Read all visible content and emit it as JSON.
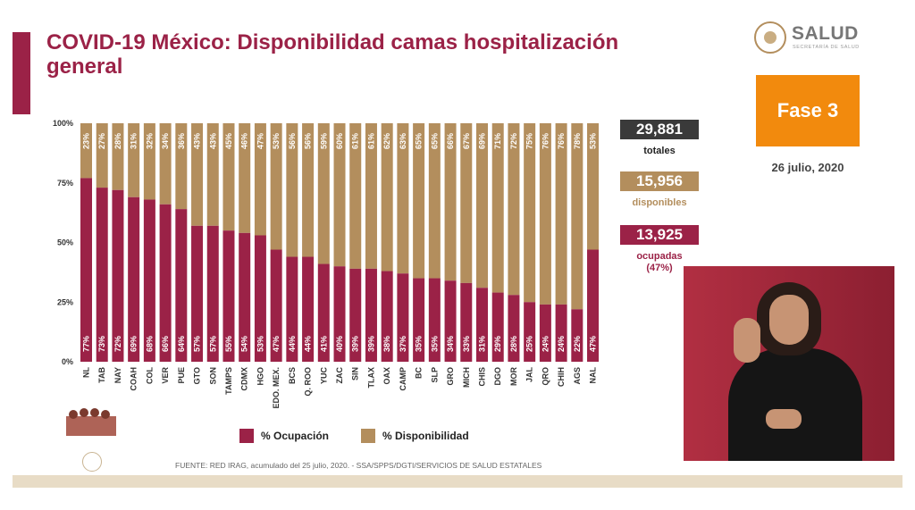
{
  "header": {
    "title": "COVID-19 México: Disponibilidad camas hospitalización general",
    "logo_text": "SALUD",
    "logo_subtext": "SECRETARÍA DE SALUD"
  },
  "phase": {
    "label": "Fase 3",
    "date": "26 julio, 2020"
  },
  "stats": {
    "totales_value": "29,881",
    "totales_label": "totales",
    "disponibles_value": "15,956",
    "disponibles_label": "disponibles",
    "ocupadas_value": "13,925",
    "ocupadas_label": "ocupadas",
    "ocupadas_pct": "(47%)"
  },
  "colors": {
    "ocupacion": "#9b2247",
    "disponibilidad": "#b38e5d",
    "title": "#9b2247",
    "phase": "#f28a0d",
    "totales_box": "#3a3a3a"
  },
  "legend": {
    "ocupacion": "% Ocupación",
    "disponibilidad": "% Disponibilidad"
  },
  "footer": "FUENTE: RED IRAG, acumulado del 25 julio, 2020. - SSA/SPPS/DGTI/SERVICIOS DE SALUD ESTATALES",
  "chart_data": {
    "type": "bar",
    "stacked": true,
    "percent_stacked": true,
    "y_ticks": [
      "0%",
      "25%",
      "50%",
      "75%",
      "100%"
    ],
    "ylim": [
      0,
      100
    ],
    "categories": [
      "NL",
      "TAB",
      "NAY",
      "COAH",
      "COL",
      "VER",
      "PUE",
      "GTO",
      "SON",
      "TAMPS",
      "CDMX",
      "HGO",
      "EDO. MEX.",
      "BCS",
      "Q. ROO",
      "YUC",
      "ZAC",
      "SIN",
      "TLAX",
      "OAX",
      "CAMP",
      "BC",
      "SLP",
      "GRO",
      "MICH",
      "CHIS",
      "DGO",
      "MOR",
      "JAL",
      "QRO",
      "CHIH",
      "AGS",
      "NAL"
    ],
    "series": [
      {
        "name": "% Ocupación",
        "values": [
          77,
          73,
          72,
          69,
          68,
          66,
          64,
          57,
          57,
          55,
          54,
          53,
          47,
          44,
          44,
          41,
          40,
          39,
          39,
          38,
          37,
          35,
          35,
          34,
          33,
          31,
          29,
          28,
          25,
          24,
          24,
          22,
          47
        ]
      },
      {
        "name": "% Disponibilidad",
        "values": [
          23,
          27,
          28,
          31,
          32,
          34,
          36,
          43,
          43,
          45,
          46,
          47,
          53,
          56,
          56,
          59,
          60,
          61,
          61,
          62,
          63,
          65,
          65,
          66,
          67,
          69,
          71,
          72,
          75,
          76,
          76,
          78,
          53
        ]
      }
    ],
    "legend_position": "bottom"
  }
}
